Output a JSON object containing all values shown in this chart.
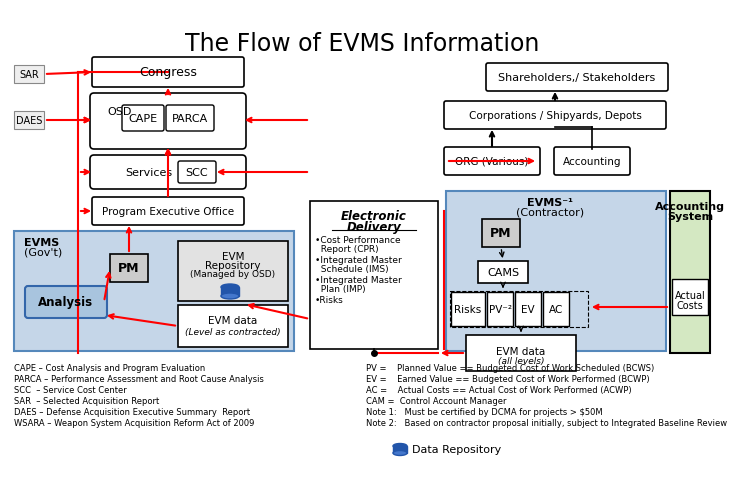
{
  "title": "The Flow of EVMS Information",
  "bg_color": "#ffffff",
  "title_fontsize": 16,
  "footnote_left": [
    "CAPE – Cost Analysis and Program Evaluation",
    "PARCA – Performance Assessment and Root Cause Analysis",
    "SCC  – Service Cost Center",
    "SAR  – Selected Acquisition Report",
    "DAES – Defense Acquisition Executive Summary  Report",
    "WSARA – Weapon System Acquisition Reform Act of 2009"
  ],
  "footnote_right": [
    "PV =    Planned Value == Budgeted Cost of Work Scheduled (BCWS)",
    "EV =    Earned Value == Budgeted Cost of Work Performed (BCWP)",
    "AC =    Actual Costs == Actual Cost of Work Performed (ACWP)",
    "CAM =  Control Account Manager",
    "Note 1:   Must be certified by DCMA for projects > $50M",
    "Note 2:   Based on contractor proposal initially, subject to Integrated Baseline Review"
  ],
  "legend_text": "Data Repository"
}
